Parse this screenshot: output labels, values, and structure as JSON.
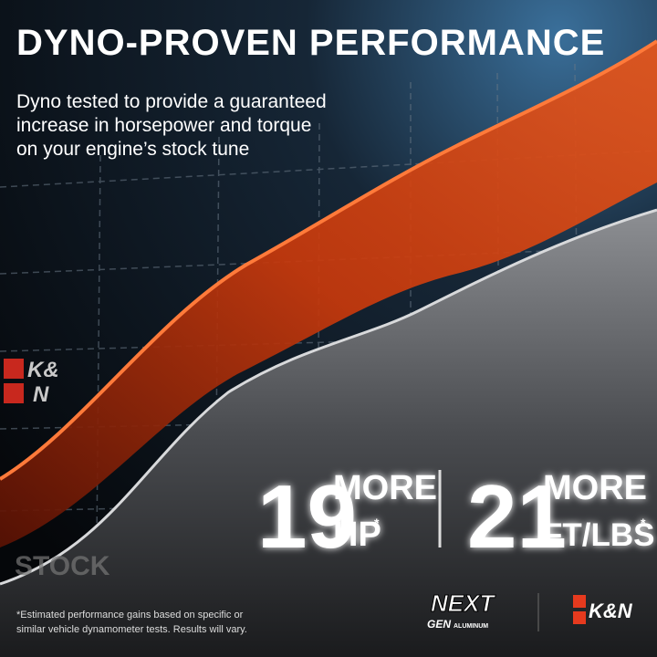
{
  "header": {
    "title": "DYNO-PROVEN PERFORMANCE",
    "subtitle_lines": [
      "Dyno tested to provide a guaranteed",
      "increase in horsepower and torque",
      "on your engine’s stock tune"
    ]
  },
  "side_logo": {
    "line1": "K&",
    "line2": "N"
  },
  "labels": {
    "stock": "STOCK"
  },
  "stats": [
    {
      "value": 19,
      "qualifier": "MORE",
      "unit": "HP",
      "note": "*"
    },
    {
      "value": 21,
      "qualifier": "MORE",
      "unit": "FT/LBS",
      "note": "*"
    }
  ],
  "footnote_lines": [
    "*Estimated performance gains based on specific or",
    "similar vehicle dynamometer tests. Results will vary."
  ],
  "footer_logos": {
    "next_gen": {
      "line1": "NEXT",
      "line2": "GEN",
      "line3": "ALUMINUM"
    },
    "brand": "K&N"
  }
}
